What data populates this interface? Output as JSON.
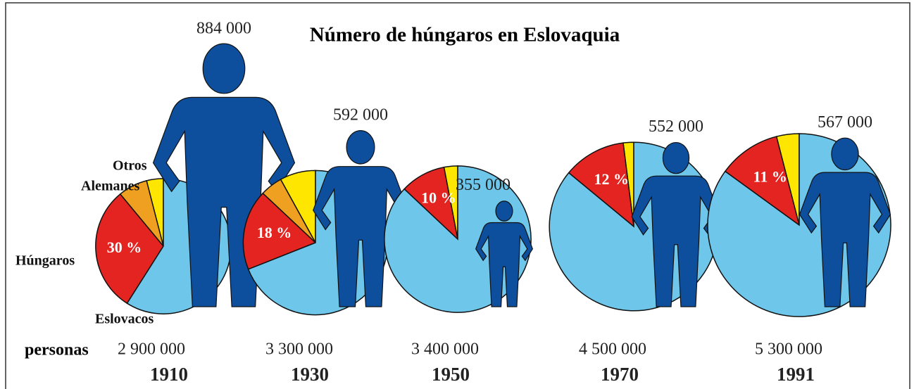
{
  "chart_data": {
    "type": "pie",
    "title": "Número de húngaros en Eslovaquia",
    "unit_label": "personas",
    "categories": [
      "1910",
      "1930",
      "1950",
      "1970",
      "1991"
    ],
    "population": {
      "values": [
        2900000,
        3300000,
        3400000,
        4500000,
        5300000
      ],
      "value_labels": [
        "2 900 000",
        "3 300 000",
        "3 400 000",
        "4 500 000",
        "5 300 000"
      ]
    },
    "hungarians": {
      "color": "#0d4f9c",
      "values": [
        884000,
        592000,
        355000,
        552000,
        567000
      ],
      "value_labels": [
        "884 000",
        "592 000",
        "355 000",
        "552 000",
        "567 000"
      ]
    },
    "series": [
      {
        "name": "Otros",
        "color": "#ffe600",
        "values": [
          4,
          8,
          3,
          2,
          4
        ]
      },
      {
        "name": "Alemanes",
        "color": "#f0a020",
        "values": [
          7,
          5,
          0,
          0,
          0
        ]
      },
      {
        "name": "Húngaros",
        "color": "#e32420",
        "values": [
          30,
          18,
          10,
          12,
          11
        ],
        "value_labels": [
          "30 %",
          "18 %",
          "10 %",
          "12 %",
          "11 %"
        ]
      },
      {
        "name": "Eslovacos",
        "color": "#6ec6ea",
        "values": [
          59,
          69,
          87,
          86,
          85
        ]
      }
    ]
  }
}
